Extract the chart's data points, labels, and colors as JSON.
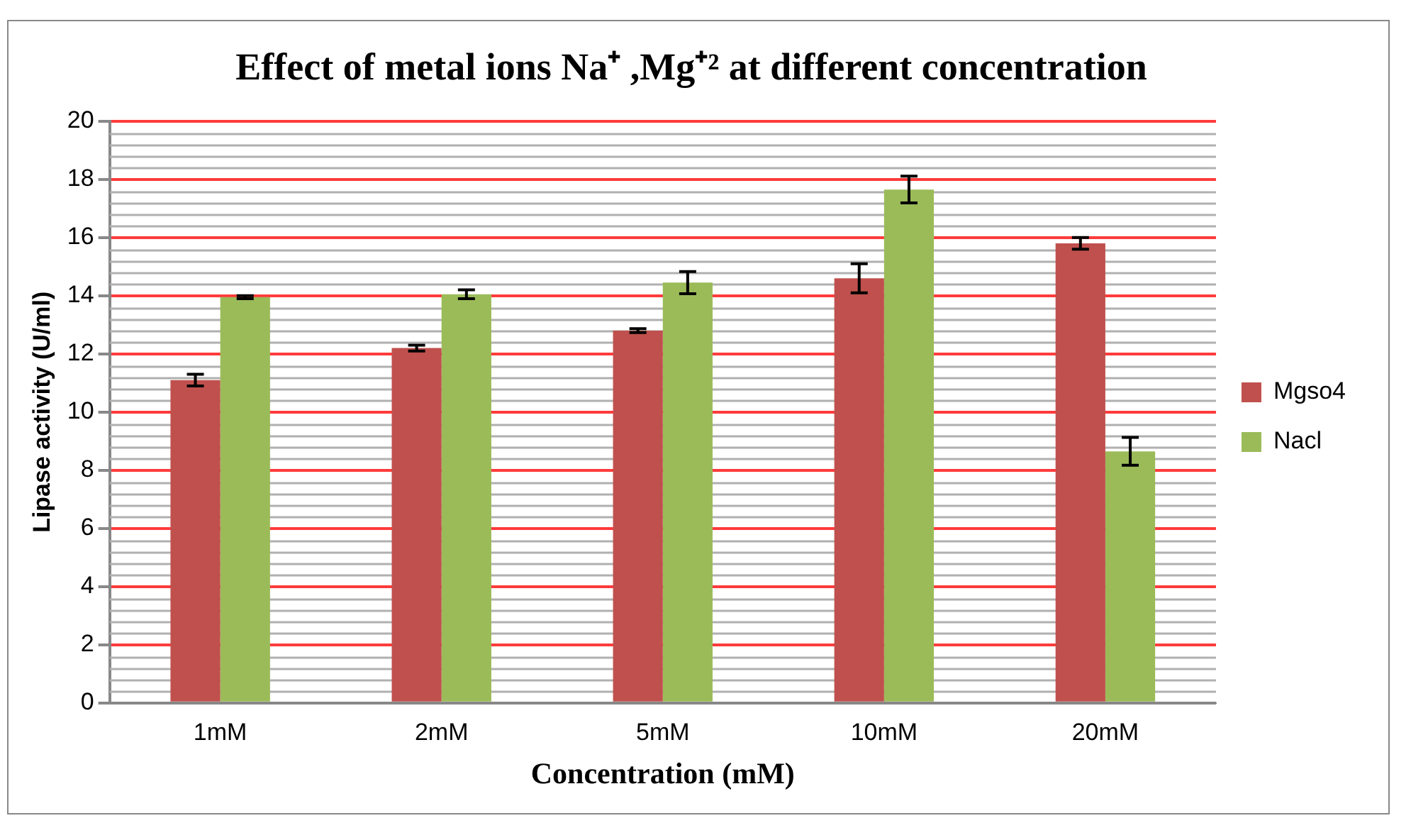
{
  "chart_data": {
    "type": "bar",
    "title": "Effect of metal ions Na⁺ ,Mg⁺² at different concentration",
    "xlabel": "Concentration (mM)",
    "ylabel": "Lipase activity (U/ml)",
    "categories": [
      "1mM",
      "2mM",
      "5mM",
      "10mM",
      "20mM"
    ],
    "series": [
      {
        "name": "Mgso4",
        "color": "#c0504d",
        "values": [
          11.1,
          12.2,
          12.8,
          14.6,
          15.8
        ],
        "errors": [
          0.2,
          0.1,
          0.07,
          0.5,
          0.2
        ]
      },
      {
        "name": "Nacl",
        "color": "#9bbb59",
        "values": [
          13.95,
          14.05,
          14.45,
          17.65,
          8.65
        ],
        "errors": [
          0.05,
          0.15,
          0.38,
          0.46,
          0.48
        ]
      }
    ],
    "ylim": [
      0,
      20
    ],
    "yticks": [
      0,
      2,
      4,
      6,
      8,
      10,
      12,
      14,
      16,
      18,
      20
    ],
    "grid": "y",
    "legend": "right"
  }
}
